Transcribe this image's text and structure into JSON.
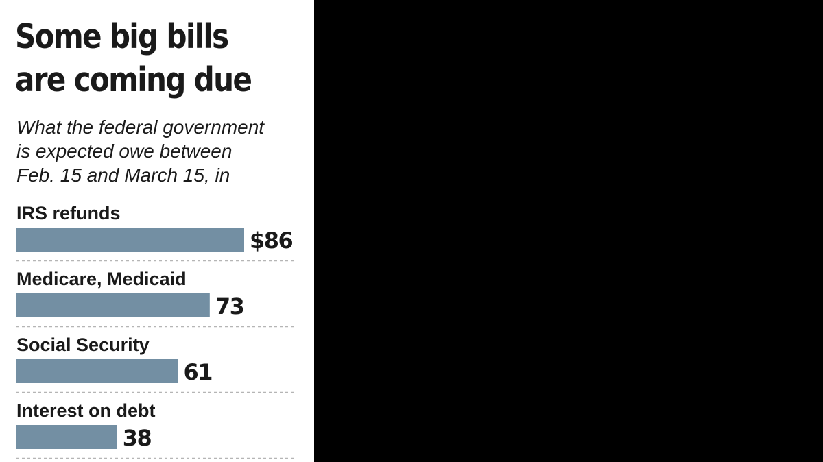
{
  "title_lines": [
    "Some big bills",
    "are coming due"
  ],
  "subtitle_lines": [
    "What the federal government",
    "is expected owe between",
    "Feb. 15 and March 15, in"
  ],
  "colors": {
    "bar": "#738fa3",
    "panel_background": "#ffffff",
    "page_background": "#000000",
    "divider": "#b5b5b5"
  },
  "chart_data": {
    "type": "bar",
    "orientation": "horizontal",
    "title": "Some big bills are coming due",
    "subtitle": "What the federal government is expected owe between Feb. 15 and March 15, in",
    "categories": [
      "IRS refunds",
      "Medicare, Medicaid",
      "Social Security",
      "Interest on debt"
    ],
    "values": [
      86,
      73,
      61,
      38
    ],
    "value_labels": [
      "$86",
      "73",
      "61",
      "38"
    ],
    "xlim": [
      0,
      86
    ],
    "grid": false,
    "legend": "none"
  }
}
